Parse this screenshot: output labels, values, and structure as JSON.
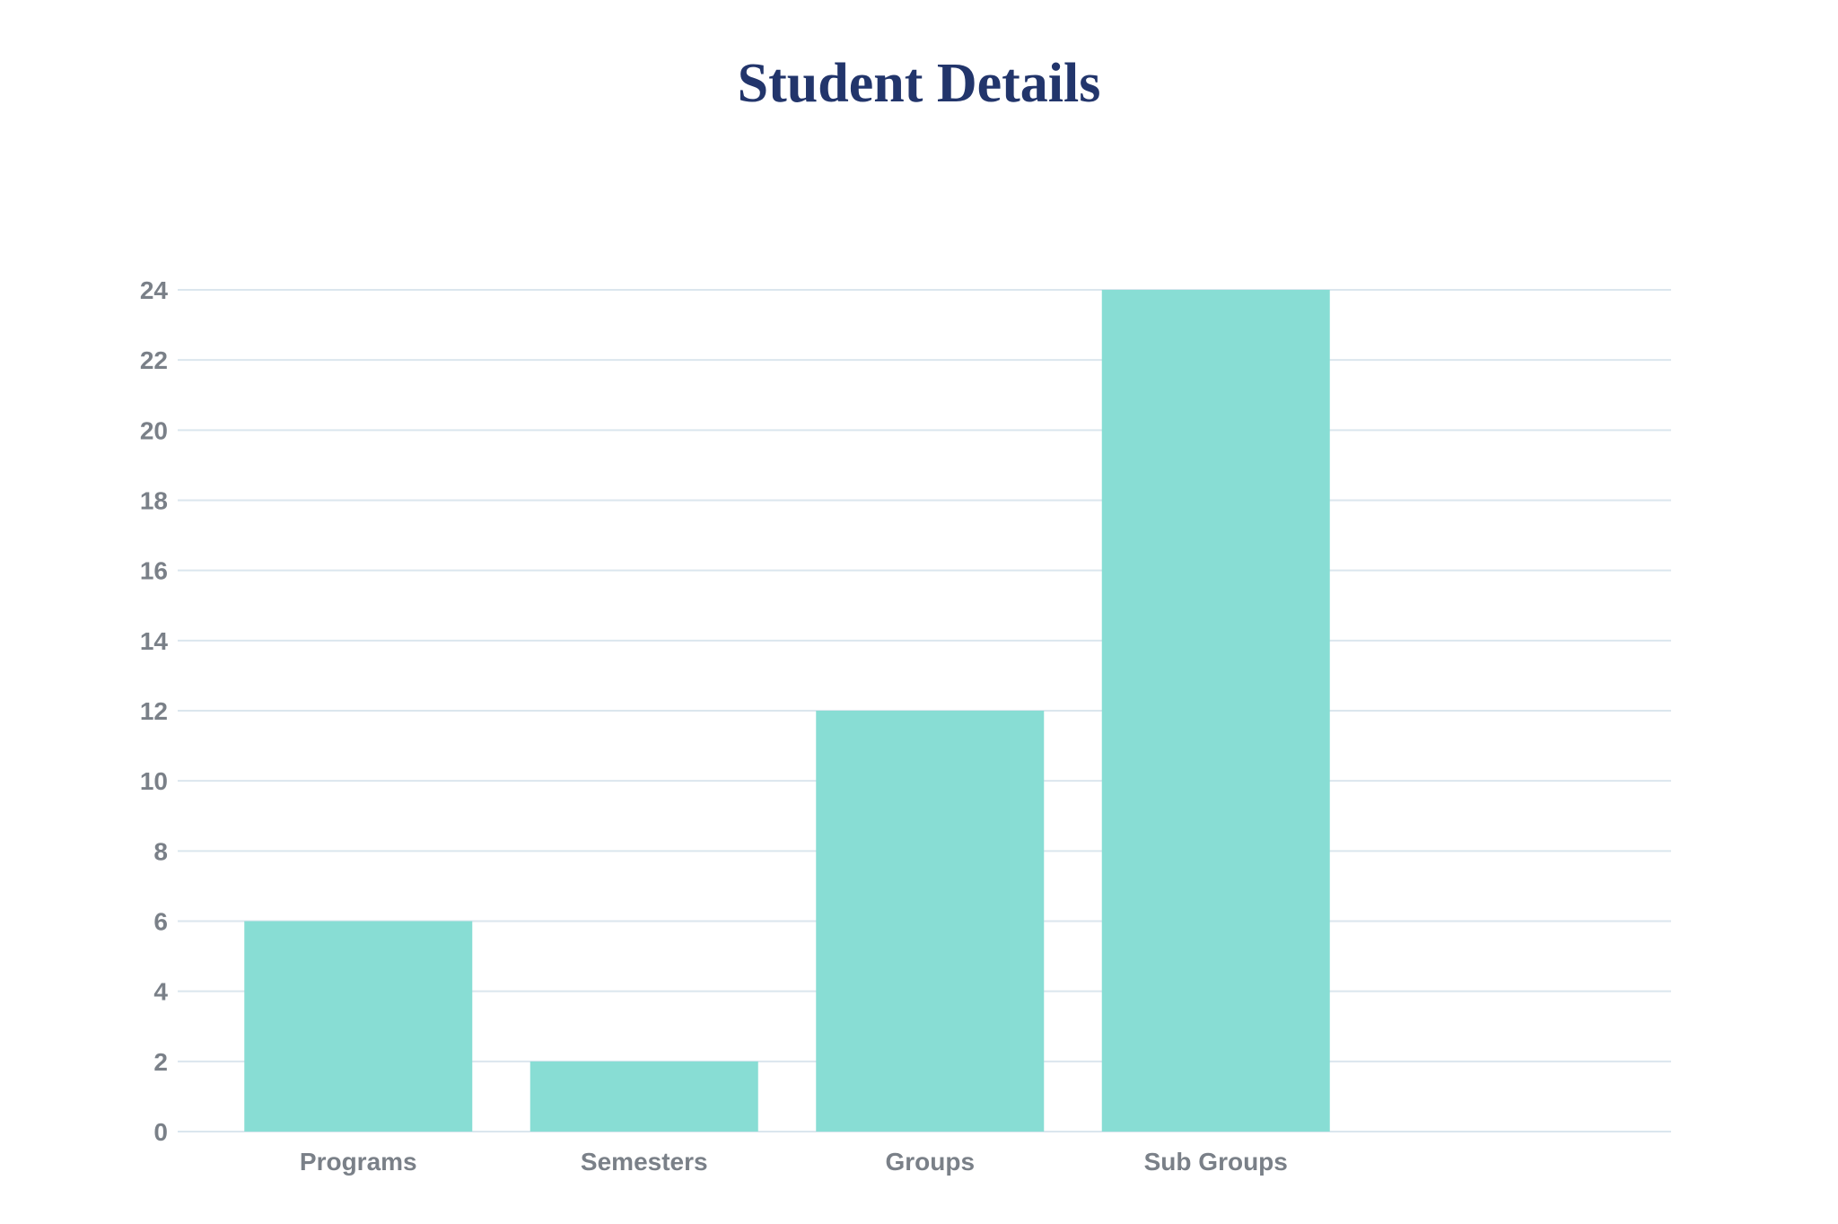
{
  "chart_data": {
    "type": "bar",
    "title": "Student Details",
    "xlabel": "",
    "ylabel": "",
    "categories": [
      "Programs",
      "Semesters",
      "Groups",
      "Sub Groups"
    ],
    "values": [
      6,
      2,
      12,
      24
    ],
    "ylim": [
      0,
      24
    ],
    "yticks": [
      0,
      2,
      4,
      6,
      8,
      10,
      12,
      14,
      16,
      18,
      20,
      22,
      24
    ],
    "grid": true,
    "legend": "none",
    "colors": {
      "bar": "#88ddd4",
      "grid": "#dbe6ee",
      "title": "#22356b",
      "tick_text": "#7a8088"
    }
  }
}
